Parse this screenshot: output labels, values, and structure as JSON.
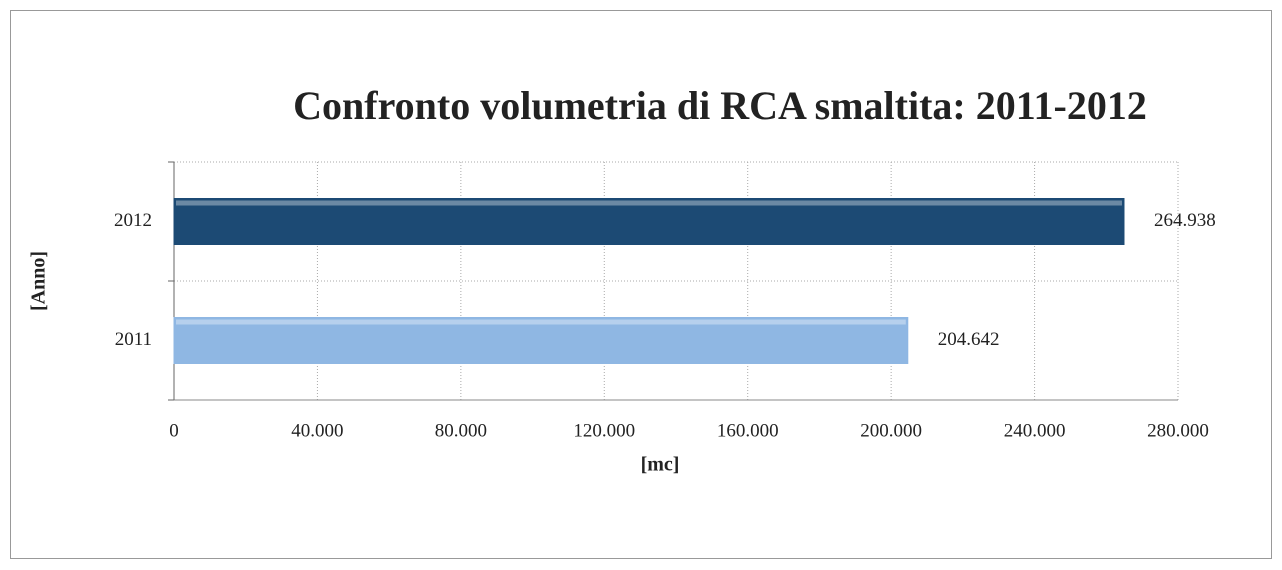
{
  "chart_data": {
    "type": "barh",
    "title": "Confronto volumetria di RCA smaltita: 2011-2012",
    "xlabel": "[mc]",
    "ylabel": "[Anno]",
    "categories": [
      "2011",
      "2012"
    ],
    "values": [
      204642,
      264938
    ],
    "value_labels": [
      "204.642",
      "264.938"
    ],
    "colors": [
      "#8fb7e3",
      "#1c4a74"
    ],
    "xlim": [
      0,
      280000
    ],
    "xticks": [
      0,
      {
        "value": 40000,
        "label": "40.000"
      },
      {
        "value": 80000,
        "label": "80.000"
      },
      {
        "value": 120000,
        "label": "120.000"
      },
      {
        "value": 160000,
        "label": "160.000"
      },
      {
        "value": 200000,
        "label": "200.000"
      },
      {
        "value": 240000,
        "label": "240.000"
      },
      {
        "value": 280000,
        "label": "280.000"
      }
    ],
    "grid": true
  }
}
